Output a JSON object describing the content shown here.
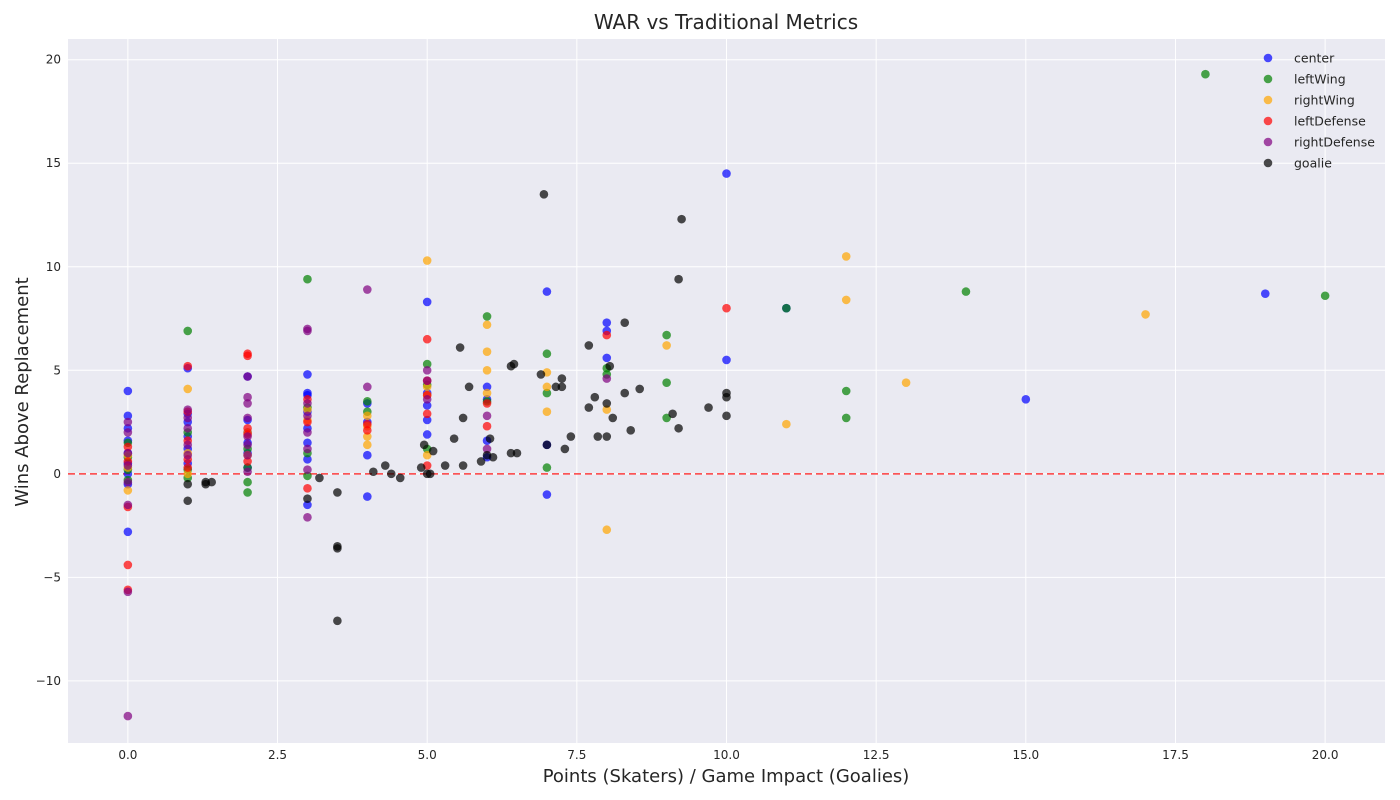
{
  "chart_data": {
    "type": "scatter",
    "title": "WAR vs Traditional Metrics",
    "xlabel": "Points (Skaters) / Game Impact (Goalies)",
    "ylabel": "Wins Above Replacement",
    "xlim": [
      -1,
      21
    ],
    "ylim": [
      -13,
      21
    ],
    "xticks": [
      0.0,
      2.5,
      5.0,
      7.5,
      10.0,
      12.5,
      15.0,
      17.5,
      20.0
    ],
    "xtick_labels": [
      "0.0",
      "2.5",
      "5.0",
      "7.5",
      "10.0",
      "12.5",
      "15.0",
      "17.5",
      "20.0"
    ],
    "yticks": [
      -10,
      -5,
      0,
      5,
      10,
      15,
      20
    ],
    "ytick_labels": [
      "−10",
      "−5",
      "0",
      "5",
      "10",
      "15",
      "20"
    ],
    "grid": true,
    "legend_position": "top-right",
    "reference_line": {
      "y": 0,
      "color": "#ff0000",
      "style": "dashed"
    },
    "series": [
      {
        "name": "center",
        "color": "#0000ff",
        "points": [
          [
            0,
            4.0
          ],
          [
            0,
            2.8
          ],
          [
            0,
            2.2
          ],
          [
            0,
            1.6
          ],
          [
            0,
            1.0
          ],
          [
            0,
            0.5
          ],
          [
            0,
            0.0
          ],
          [
            0,
            -0.5
          ],
          [
            0,
            -2.8
          ],
          [
            1,
            5.1
          ],
          [
            1,
            2.9
          ],
          [
            1,
            2.5
          ],
          [
            1,
            1.8
          ],
          [
            1,
            1.2
          ],
          [
            1,
            0.5
          ],
          [
            2,
            4.7
          ],
          [
            2,
            2.6
          ],
          [
            2,
            2.0
          ],
          [
            2,
            1.5
          ],
          [
            2,
            1.0
          ],
          [
            2,
            0.3
          ],
          [
            3,
            4.8
          ],
          [
            3,
            3.9
          ],
          [
            3,
            3.8
          ],
          [
            3,
            3.0
          ],
          [
            3,
            2.2
          ],
          [
            3,
            1.5
          ],
          [
            3,
            0.7
          ],
          [
            3,
            -1.5
          ],
          [
            4,
            3.4
          ],
          [
            4,
            2.5
          ],
          [
            4,
            0.9
          ],
          [
            4,
            -1.1
          ],
          [
            5,
            8.3
          ],
          [
            5,
            3.9
          ],
          [
            5,
            3.3
          ],
          [
            5,
            2.6
          ],
          [
            5,
            1.9
          ],
          [
            6,
            4.2
          ],
          [
            6,
            3.6
          ],
          [
            6,
            1.6
          ],
          [
            6,
            0.8
          ],
          [
            7,
            8.8
          ],
          [
            7,
            1.4
          ],
          [
            7,
            -1.0
          ],
          [
            8,
            7.3
          ],
          [
            8,
            6.9
          ],
          [
            8,
            5.6
          ],
          [
            10,
            14.5
          ],
          [
            10,
            5.5
          ],
          [
            11,
            8.0
          ],
          [
            15,
            3.6
          ],
          [
            19,
            8.7
          ]
        ]
      },
      {
        "name": "leftWing",
        "color": "#008000",
        "points": [
          [
            0,
            1.5
          ],
          [
            0,
            0.8
          ],
          [
            0,
            0.2
          ],
          [
            0,
            -0.3
          ],
          [
            1,
            6.9
          ],
          [
            1,
            2.0
          ],
          [
            1,
            0.2
          ],
          [
            1,
            -0.2
          ],
          [
            2,
            1.2
          ],
          [
            2,
            0.3
          ],
          [
            2,
            -0.4
          ],
          [
            2,
            -0.9
          ],
          [
            3,
            9.4
          ],
          [
            3,
            3.2
          ],
          [
            3,
            1.0
          ],
          [
            3,
            -0.1
          ],
          [
            4,
            3.5
          ],
          [
            4,
            3.0
          ],
          [
            5,
            5.3
          ],
          [
            5,
            4.3
          ],
          [
            5,
            1.2
          ],
          [
            6,
            7.6
          ],
          [
            6,
            3.5
          ],
          [
            7,
            5.8
          ],
          [
            7,
            3.9
          ],
          [
            7,
            0.3
          ],
          [
            8,
            5.1
          ],
          [
            8,
            4.8
          ],
          [
            9,
            6.7
          ],
          [
            9,
            4.4
          ],
          [
            9,
            2.7
          ],
          [
            11,
            8.0
          ],
          [
            12,
            4.0
          ],
          [
            12,
            2.7
          ],
          [
            14,
            8.8
          ],
          [
            18,
            19.3
          ],
          [
            20,
            8.6
          ]
        ]
      },
      {
        "name": "rightWing",
        "color": "#ffa500",
        "points": [
          [
            0,
            0.9
          ],
          [
            0,
            0.3
          ],
          [
            0,
            -0.8
          ],
          [
            1,
            4.1
          ],
          [
            1,
            1.0
          ],
          [
            1,
            0.0
          ],
          [
            2,
            2.0
          ],
          [
            2,
            0.9
          ],
          [
            3,
            3.1
          ],
          [
            3,
            2.6
          ],
          [
            4,
            2.8
          ],
          [
            4,
            2.3
          ],
          [
            4,
            1.8
          ],
          [
            4,
            1.4
          ],
          [
            5,
            10.3
          ],
          [
            5,
            4.2
          ],
          [
            5,
            3.8
          ],
          [
            5,
            0.9
          ],
          [
            6,
            7.2
          ],
          [
            6,
            5.9
          ],
          [
            6,
            5.0
          ],
          [
            6,
            3.9
          ],
          [
            7,
            4.9
          ],
          [
            7,
            4.2
          ],
          [
            7,
            3.0
          ],
          [
            8,
            3.1
          ],
          [
            8,
            -2.7
          ],
          [
            9,
            6.2
          ],
          [
            11,
            2.4
          ],
          [
            12,
            10.5
          ],
          [
            12,
            8.4
          ],
          [
            13,
            4.4
          ],
          [
            17,
            7.7
          ]
        ]
      },
      {
        "name": "leftDefense",
        "color": "#ff0000",
        "points": [
          [
            0,
            1.3
          ],
          [
            0,
            0.6
          ],
          [
            0,
            -1.6
          ],
          [
            0,
            -4.4
          ],
          [
            0,
            -5.6
          ],
          [
            1,
            5.2
          ],
          [
            1,
            3.0
          ],
          [
            1,
            1.6
          ],
          [
            1,
            0.7
          ],
          [
            1,
            0.3
          ],
          [
            2,
            5.8
          ],
          [
            2,
            5.7
          ],
          [
            2,
            2.2
          ],
          [
            2,
            1.9
          ],
          [
            2,
            0.6
          ],
          [
            3,
            3.6
          ],
          [
            3,
            2.5
          ],
          [
            3,
            -0.7
          ],
          [
            4,
            2.4
          ],
          [
            4,
            2.1
          ],
          [
            5,
            6.5
          ],
          [
            5,
            4.5
          ],
          [
            5,
            3.8
          ],
          [
            5,
            2.9
          ],
          [
            5,
            0.4
          ],
          [
            6,
            3.4
          ],
          [
            6,
            2.3
          ],
          [
            8,
            6.7
          ],
          [
            10,
            8.0
          ]
        ]
      },
      {
        "name": "rightDefense",
        "color": "#800080",
        "points": [
          [
            0,
            2.5
          ],
          [
            0,
            2.0
          ],
          [
            0,
            1.0
          ],
          [
            0,
            0.4
          ],
          [
            0,
            -0.4
          ],
          [
            0,
            -1.5
          ],
          [
            0,
            -5.7
          ],
          [
            0,
            -11.7
          ],
          [
            1,
            3.1
          ],
          [
            1,
            2.7
          ],
          [
            1,
            2.2
          ],
          [
            1,
            1.4
          ],
          [
            1,
            0.9
          ],
          [
            2,
            4.7
          ],
          [
            2,
            3.7
          ],
          [
            2,
            3.4
          ],
          [
            2,
            2.7
          ],
          [
            2,
            1.8
          ],
          [
            2,
            1.4
          ],
          [
            2,
            0.9
          ],
          [
            2,
            0.1
          ],
          [
            3,
            7.0
          ],
          [
            3,
            6.9
          ],
          [
            3,
            3.4
          ],
          [
            3,
            2.8
          ],
          [
            3,
            2.0
          ],
          [
            3,
            1.2
          ],
          [
            3,
            0.2
          ],
          [
            3,
            -2.1
          ],
          [
            4,
            8.9
          ],
          [
            4,
            4.2
          ],
          [
            5,
            5.0
          ],
          [
            5,
            4.5
          ],
          [
            5,
            3.6
          ],
          [
            6,
            2.8
          ],
          [
            6,
            1.2
          ],
          [
            8,
            4.6
          ]
        ]
      },
      {
        "name": "goalie",
        "color": "#000000",
        "points": [
          [
            1,
            -0.5
          ],
          [
            1,
            -1.3
          ],
          [
            1.3,
            -0.4
          ],
          [
            1.3,
            -0.5
          ],
          [
            1.4,
            -0.4
          ],
          [
            3,
            -1.2
          ],
          [
            3.2,
            -0.2
          ],
          [
            3.5,
            -0.9
          ],
          [
            3.5,
            -3.5
          ],
          [
            3.5,
            -3.6
          ],
          [
            3.5,
            -7.1
          ],
          [
            4.1,
            0.1
          ],
          [
            4.3,
            0.4
          ],
          [
            4.4,
            0.0
          ],
          [
            4.55,
            -0.2
          ],
          [
            4.9,
            0.3
          ],
          [
            4.95,
            1.4
          ],
          [
            5.0,
            0.0
          ],
          [
            5.05,
            0.0
          ],
          [
            5.1,
            1.1
          ],
          [
            5.3,
            0.4
          ],
          [
            5.45,
            1.7
          ],
          [
            5.55,
            6.1
          ],
          [
            5.6,
            0.4
          ],
          [
            5.6,
            2.7
          ],
          [
            5.7,
            4.2
          ],
          [
            5.9,
            0.6
          ],
          [
            6.0,
            0.9
          ],
          [
            6.05,
            1.7
          ],
          [
            6.1,
            0.8
          ],
          [
            6.4,
            5.2
          ],
          [
            6.4,
            1.0
          ],
          [
            6.45,
            5.3
          ],
          [
            6.5,
            1.0
          ],
          [
            6.9,
            4.8
          ],
          [
            6.95,
            13.5
          ],
          [
            7.0,
            1.4
          ],
          [
            7.15,
            4.2
          ],
          [
            7.25,
            4.6
          ],
          [
            7.25,
            4.2
          ],
          [
            7.3,
            1.2
          ],
          [
            7.4,
            1.8
          ],
          [
            7.7,
            6.2
          ],
          [
            7.7,
            3.2
          ],
          [
            7.8,
            3.7
          ],
          [
            7.85,
            1.8
          ],
          [
            8.0,
            1.8
          ],
          [
            8.0,
            3.4
          ],
          [
            8.05,
            5.2
          ],
          [
            8.1,
            2.7
          ],
          [
            8.3,
            3.9
          ],
          [
            8.3,
            7.3
          ],
          [
            8.4,
            2.1
          ],
          [
            8.55,
            4.1
          ],
          [
            9.1,
            2.9
          ],
          [
            9.2,
            2.2
          ],
          [
            9.2,
            9.4
          ],
          [
            9.25,
            12.3
          ],
          [
            9.7,
            3.2
          ],
          [
            10.0,
            2.8
          ],
          [
            10.0,
            3.7
          ],
          [
            10.0,
            3.9
          ]
        ]
      }
    ]
  }
}
